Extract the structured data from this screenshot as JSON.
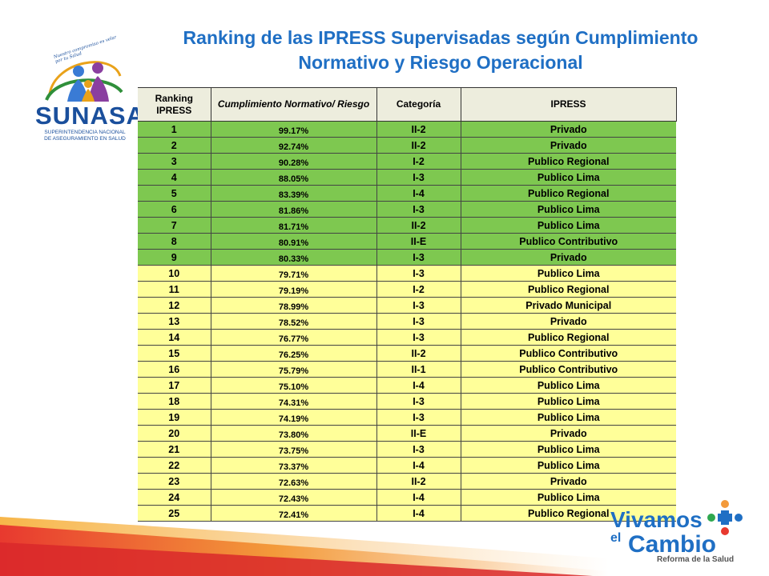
{
  "title": "Ranking de las IPRESS Supervisadas según Cumplimiento Normativo y Riesgo Operacional",
  "logo": {
    "brand": "SUNASA",
    "line1": "SUPERINTENDENCIA NACIONAL",
    "line2": "DE ASEGURAMIENTO EN SALUD",
    "motto": "Nuestro compromiso es velar por tu Salud"
  },
  "table": {
    "headers": [
      "Ranking IPRESS",
      "Cumplimiento Normativo/ Riesgo",
      "Categoría",
      "IPRESS"
    ],
    "rows": [
      {
        "rank": "1",
        "pct": "99.17%",
        "cat": "II-2",
        "ipress": "Privado",
        "level": "green"
      },
      {
        "rank": "2",
        "pct": "92.74%",
        "cat": "II-2",
        "ipress": "Privado",
        "level": "green"
      },
      {
        "rank": "3",
        "pct": "90.28%",
        "cat": "I-2",
        "ipress": "Publico Regional",
        "level": "green"
      },
      {
        "rank": "4",
        "pct": "88.05%",
        "cat": "I-3",
        "ipress": "Publico Lima",
        "level": "green"
      },
      {
        "rank": "5",
        "pct": "83.39%",
        "cat": "I-4",
        "ipress": "Publico Regional",
        "level": "green"
      },
      {
        "rank": "6",
        "pct": "81.86%",
        "cat": "I-3",
        "ipress": "Publico Lima",
        "level": "green"
      },
      {
        "rank": "7",
        "pct": "81.71%",
        "cat": "II-2",
        "ipress": "Publico Lima",
        "level": "green"
      },
      {
        "rank": "8",
        "pct": "80.91%",
        "cat": "II-E",
        "ipress": "Publico Contributivo",
        "level": "green"
      },
      {
        "rank": "9",
        "pct": "80.33%",
        "cat": "I-3",
        "ipress": "Privado",
        "level": "green"
      },
      {
        "rank": "10",
        "pct": "79.71%",
        "cat": "I-3",
        "ipress": "Publico Lima",
        "level": "yellow"
      },
      {
        "rank": "11",
        "pct": "79.19%",
        "cat": "I-2",
        "ipress": "Publico Regional",
        "level": "yellow"
      },
      {
        "rank": "12",
        "pct": "78.99%",
        "cat": "I-3",
        "ipress": "Privado Municipal",
        "level": "yellow"
      },
      {
        "rank": "13",
        "pct": "78.52%",
        "cat": "I-3",
        "ipress": "Privado",
        "level": "yellow"
      },
      {
        "rank": "14",
        "pct": "76.77%",
        "cat": "I-3",
        "ipress": "Publico Regional",
        "level": "yellow"
      },
      {
        "rank": "15",
        "pct": "76.25%",
        "cat": "II-2",
        "ipress": "Publico Contributivo",
        "level": "yellow"
      },
      {
        "rank": "16",
        "pct": "75.79%",
        "cat": "II-1",
        "ipress": "Publico Contributivo",
        "level": "yellow"
      },
      {
        "rank": "17",
        "pct": "75.10%",
        "cat": "I-4",
        "ipress": "Publico Lima",
        "level": "yellow"
      },
      {
        "rank": "18",
        "pct": "74.31%",
        "cat": "I-3",
        "ipress": "Publico Lima",
        "level": "yellow"
      },
      {
        "rank": "19",
        "pct": "74.19%",
        "cat": "I-3",
        "ipress": "Publico Lima",
        "level": "yellow"
      },
      {
        "rank": "20",
        "pct": "73.80%",
        "cat": "II-E",
        "ipress": "Privado",
        "level": "yellow"
      },
      {
        "rank": "21",
        "pct": "73.75%",
        "cat": "I-3",
        "ipress": "Publico Lima",
        "level": "yellow"
      },
      {
        "rank": "22",
        "pct": "73.37%",
        "cat": "I-4",
        "ipress": "Publico Lima",
        "level": "yellow"
      },
      {
        "rank": "23",
        "pct": "72.63%",
        "cat": "II-2",
        "ipress": "Privado",
        "level": "yellow"
      },
      {
        "rank": "24",
        "pct": "72.43%",
        "cat": "I-4",
        "ipress": "Publico Lima",
        "level": "yellow"
      },
      {
        "rank": "25",
        "pct": "72.41%",
        "cat": "I-4",
        "ipress": "Publico Regional",
        "level": "yellow"
      }
    ]
  },
  "footer_logo": {
    "word1": "Vivamos",
    "word2": "el",
    "word3": "Cambio",
    "tagline": "Reforma de la Salud"
  },
  "colors": {
    "title": "#1f6fc4",
    "green_row": "#7ec850",
    "yellow_row": "#ffff99",
    "header_bg": "#ededdd"
  }
}
